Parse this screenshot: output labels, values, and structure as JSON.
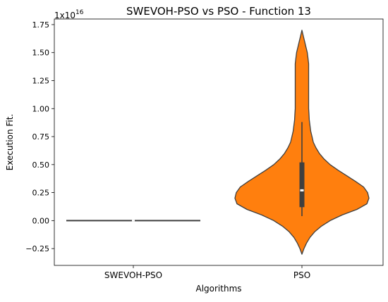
{
  "chart_data": {
    "type": "violin",
    "title": "SWEVOH-PSO vs PSO - Function 13",
    "xlabel": "Algorithms",
    "ylabel": "Execution Fit.",
    "y_offset_label_base": "1x10",
    "y_offset_label_exp": "16",
    "y_scale": 1e+16,
    "ylim": [
      -0.4,
      1.8
    ],
    "yticks": [
      {
        "value": -0.25,
        "label": "−0.25"
      },
      {
        "value": 0.0,
        "label": "0.00"
      },
      {
        "value": 0.25,
        "label": "0.25"
      },
      {
        "value": 0.5,
        "label": "0.50"
      },
      {
        "value": 0.75,
        "label": "0.75"
      },
      {
        "value": 1.0,
        "label": "1.00"
      },
      {
        "value": 1.25,
        "label": "1.25"
      },
      {
        "value": 1.5,
        "label": "1.50"
      },
      {
        "value": 1.75,
        "label": "1.75"
      }
    ],
    "categories": [
      "SWEVOH-PSO",
      "PSO"
    ],
    "violins": [
      {
        "name": "SWEVOH-PSO",
        "color": "#1f77b4",
        "flat": true,
        "value": 0.0,
        "median": 0.0,
        "q1": 0.0,
        "q3": 0.0,
        "whisker_low": 0.0,
        "whisker_high": 0.0
      },
      {
        "name": "PSO",
        "color": "#ff7f0e",
        "flat": false,
        "median": 0.27,
        "q1": 0.12,
        "q3": 0.52,
        "whisker_low": 0.04,
        "whisker_high": 0.88,
        "profile": [
          [
            -0.3,
            0.0
          ],
          [
            -0.25,
            0.03
          ],
          [
            -0.2,
            0.07
          ],
          [
            -0.15,
            0.12
          ],
          [
            -0.1,
            0.19
          ],
          [
            -0.05,
            0.29
          ],
          [
            0.0,
            0.42
          ],
          [
            0.05,
            0.6
          ],
          [
            0.1,
            0.82
          ],
          [
            0.15,
            0.97
          ],
          [
            0.2,
            1.0
          ],
          [
            0.25,
            0.98
          ],
          [
            0.3,
            0.92
          ],
          [
            0.35,
            0.8
          ],
          [
            0.4,
            0.67
          ],
          [
            0.45,
            0.54
          ],
          [
            0.5,
            0.42
          ],
          [
            0.55,
            0.33
          ],
          [
            0.6,
            0.26
          ],
          [
            0.65,
            0.21
          ],
          [
            0.7,
            0.17
          ],
          [
            0.75,
            0.15
          ],
          [
            0.8,
            0.13
          ],
          [
            0.85,
            0.12
          ],
          [
            0.9,
            0.11
          ],
          [
            0.95,
            0.105
          ],
          [
            1.0,
            0.1
          ],
          [
            1.05,
            0.1
          ],
          [
            1.1,
            0.1
          ],
          [
            1.15,
            0.1
          ],
          [
            1.2,
            0.1
          ],
          [
            1.25,
            0.1
          ],
          [
            1.3,
            0.1
          ],
          [
            1.35,
            0.1
          ],
          [
            1.4,
            0.1
          ],
          [
            1.45,
            0.09
          ],
          [
            1.5,
            0.08
          ],
          [
            1.55,
            0.06
          ],
          [
            1.6,
            0.04
          ],
          [
            1.65,
            0.02
          ],
          [
            1.7,
            0.0
          ]
        ]
      }
    ],
    "grid": false,
    "legend": "none"
  }
}
